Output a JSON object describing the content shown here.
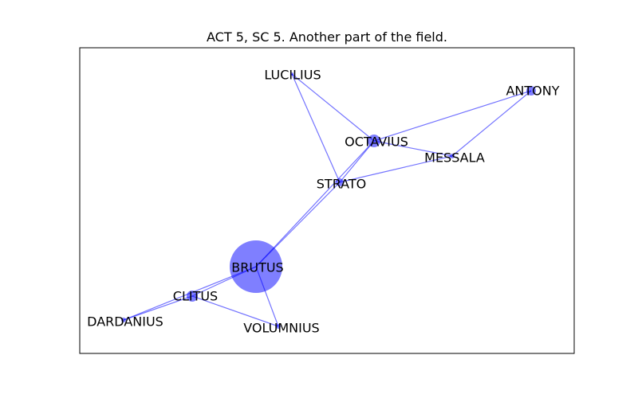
{
  "title": "ACT 5, SC 5. Another part of the field.",
  "colors": {
    "node": "#0000ff",
    "edge": "#0000ff",
    "frame": "#000000",
    "background": "#ffffff"
  },
  "nodes": [
    {
      "id": "BRUTUS",
      "label": "BRUTUS",
      "weight": 10
    },
    {
      "id": "CLITUS",
      "label": "CLITUS",
      "weight": 2
    },
    {
      "id": "DARDANIUS",
      "label": "DARDANIUS",
      "weight": 1
    },
    {
      "id": "VOLUMNIUS",
      "label": "VOLUMNIUS",
      "weight": 1
    },
    {
      "id": "STRATO",
      "label": "STRATO",
      "weight": 1
    },
    {
      "id": "OCTAVIUS",
      "label": "OCTAVIUS",
      "weight": 2
    },
    {
      "id": "MESSALA",
      "label": "MESSALA",
      "weight": 1
    },
    {
      "id": "ANTONY",
      "label": "ANTONY",
      "weight": 1
    },
    {
      "id": "LUCILIUS",
      "label": "LUCILIUS",
      "weight": 1
    }
  ],
  "edges": [
    [
      "BRUTUS",
      "CLITUS"
    ],
    [
      "BRUTUS",
      "DARDANIUS"
    ],
    [
      "BRUTUS",
      "VOLUMNIUS"
    ],
    [
      "BRUTUS",
      "STRATO"
    ],
    [
      "BRUTUS",
      "OCTAVIUS"
    ],
    [
      "CLITUS",
      "DARDANIUS"
    ],
    [
      "CLITUS",
      "VOLUMNIUS"
    ],
    [
      "STRATO",
      "LUCILIUS"
    ],
    [
      "STRATO",
      "OCTAVIUS"
    ],
    [
      "STRATO",
      "MESSALA"
    ],
    [
      "OCTAVIUS",
      "LUCILIUS"
    ],
    [
      "OCTAVIUS",
      "MESSALA"
    ],
    [
      "OCTAVIUS",
      "ANTONY"
    ],
    [
      "MESSALA",
      "ANTONY"
    ]
  ]
}
